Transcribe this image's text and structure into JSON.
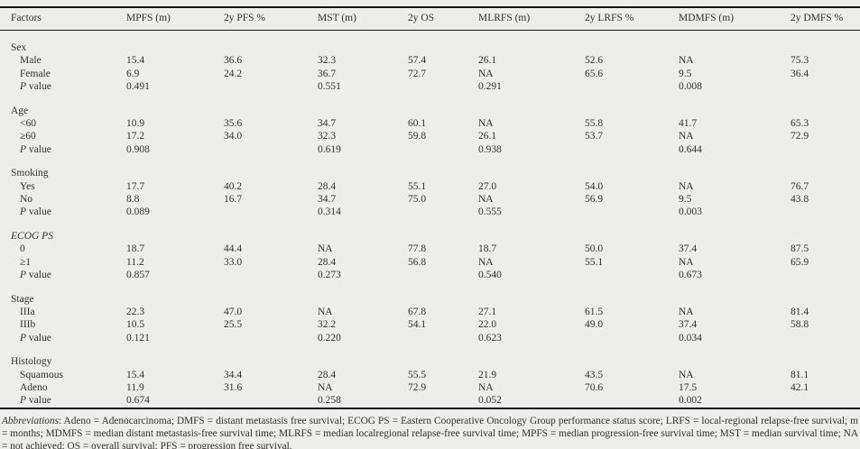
{
  "table": {
    "columns": [
      "Factors",
      "MPFS (m)",
      "2y PFS %",
      "MST (m)",
      "2y OS",
      "MLRFS (m)",
      "2y LRFS %",
      "MDMFS (m)",
      "2y DMFS %"
    ],
    "sections": [
      {
        "label": "Sex",
        "rows": [
          {
            "label": "Male",
            "cells": [
              "15.4",
              "36.6",
              "32.3",
              "57.4",
              "26.1",
              "52.6",
              "NA",
              "75.3"
            ]
          },
          {
            "label": "Female",
            "cells": [
              "6.9",
              "24.2",
              "36.7",
              "72.7",
              "NA",
              "65.6",
              "9.5",
              "36.4"
            ]
          },
          {
            "label_italic": "P",
            "label": " value",
            "cells": [
              "0.491",
              "",
              "0.551",
              "",
              "0.291",
              "",
              "0.008",
              ""
            ]
          }
        ]
      },
      {
        "label": "Age",
        "rows": [
          {
            "label": "<60",
            "cells": [
              "10.9",
              "35.6",
              "34.7",
              "60.1",
              "NA",
              "55.8",
              "41.7",
              "65.3"
            ]
          },
          {
            "label": "≥60",
            "cells": [
              "17.2",
              "34.0",
              "32.3",
              "59.8",
              "26.1",
              "53.7",
              "NA",
              "72.9"
            ]
          },
          {
            "label_italic": "P",
            "label": " value",
            "cells": [
              "0.908",
              "",
              "0.619",
              "",
              "0.938",
              "",
              "0.644",
              ""
            ]
          }
        ]
      },
      {
        "label": "Smoking",
        "rows": [
          {
            "label": "Yes",
            "cells": [
              "17.7",
              "40.2",
              "28.4",
              "55.1",
              "27.0",
              "54.0",
              "NA",
              "76.7"
            ]
          },
          {
            "label": "No",
            "cells": [
              "8.8",
              "16.7",
              "34.7",
              "75.0",
              "NA",
              "56.9",
              "9.5",
              "43.8"
            ]
          },
          {
            "label_italic": "P",
            "label": " value",
            "cells": [
              "0.089",
              "",
              "0.314",
              "",
              "0.555",
              "",
              "0.003",
              ""
            ]
          }
        ]
      },
      {
        "label": "ECOG PS",
        "italic": true,
        "rows": [
          {
            "label": "0",
            "cells": [
              "18.7",
              "44.4",
              "NA",
              "77.8",
              "18.7",
              "50.0",
              "37.4",
              "87.5"
            ]
          },
          {
            "label": "≥1",
            "cells": [
              "11.2",
              "33.0",
              "28.4",
              "56.8",
              "NA",
              "55.1",
              "NA",
              "65.9"
            ]
          },
          {
            "label_italic": "P",
            "label": " value",
            "cells": [
              "0.857",
              "",
              "0.273",
              "",
              "0.540",
              "",
              "0.673",
              ""
            ]
          }
        ]
      },
      {
        "label": "Stage",
        "rows": [
          {
            "label": "IIIa",
            "cells": [
              "22.3",
              "47.0",
              "NA",
              "67.8",
              "27.1",
              "61.5",
              "NA",
              "81.4"
            ]
          },
          {
            "label": "IIIb",
            "cells": [
              "10.5",
              "25.5",
              "32.2",
              "54.1",
              "22.0",
              "49.0",
              "37.4",
              "58.8"
            ]
          },
          {
            "label_italic": "P",
            "label": " value",
            "cells": [
              "0.121",
              "",
              "0.220",
              "",
              "0.623",
              "",
              "0.034",
              ""
            ]
          }
        ]
      },
      {
        "label": "Histology",
        "rows": [
          {
            "label": "Squamous",
            "cells": [
              "15.4",
              "34.4",
              "28.4",
              "55.5",
              "21.9",
              "43.5",
              "NA",
              "81.1"
            ]
          },
          {
            "label": "Adeno",
            "cells": [
              "11.9",
              "31.6",
              "NA",
              "72.9",
              "NA",
              "70.6",
              "17.5",
              "42.1"
            ]
          },
          {
            "label_italic": "P",
            "label": " value",
            "cells": [
              "0.674",
              "",
              "0.258",
              "",
              "0.052",
              "",
              "0.002",
              ""
            ]
          }
        ]
      }
    ]
  },
  "footnote": {
    "lead_italic": "Abbreviations",
    "text": ": Adeno = Adenocarcinoma; DMFS = distant metastasis free survival; ECOG PS = Eastern Cooperative Oncology Group performance status score; LRFS = local-regional relapse-free survival; m = months; MDMFS = median distant metastasis-free survival time; MLRFS = median localregional relapse-free survival time; MPFS = median progression-free survival time; MST = median survival time; NA = not achieved; OS = overall survival; PFS = progression free survival."
  },
  "colors": {
    "page_background": "#edeeeb",
    "rule": "#161513",
    "text": "#34302b"
  }
}
